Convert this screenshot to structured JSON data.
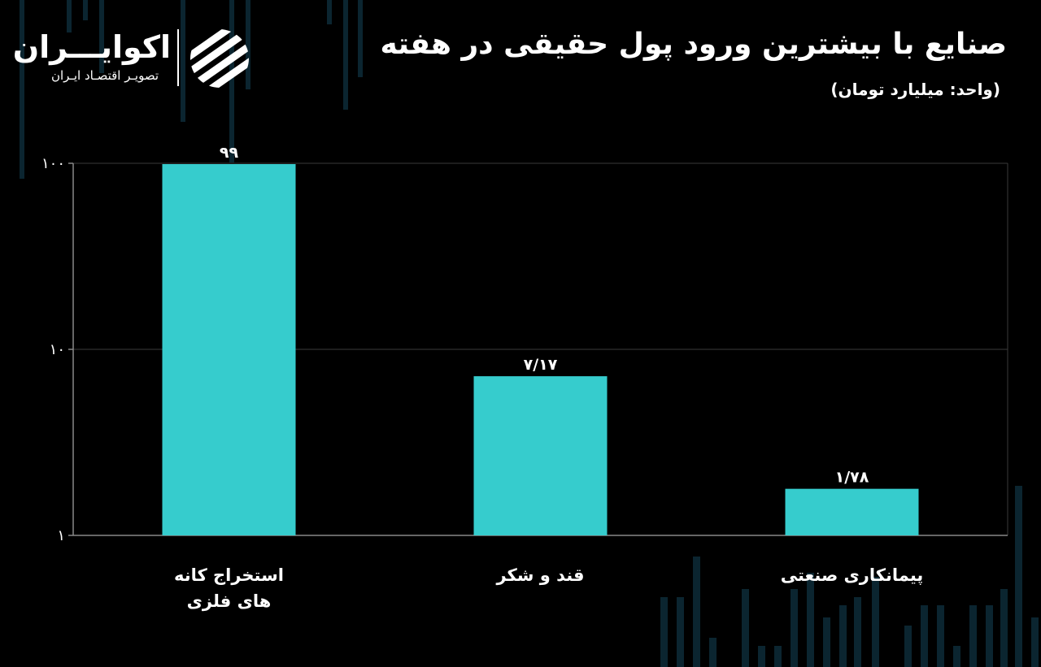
{
  "brand": {
    "name": "اکوایـــران",
    "tagline": "تصویـر اقتصـاد ایـران",
    "mark_icon": "ekoiran-logo-icon"
  },
  "colors": {
    "background": "#000000",
    "bar": "#36cccd",
    "text": "#ffffff",
    "grid": "#3a3a3a",
    "decor": "#0b2530"
  },
  "chart_data": {
    "type": "bar",
    "title": "صنایع با بیشترین ورود پول حقیقی در هفته",
    "subtitle": "(واحد: میلیارد تومان)",
    "categories": [
      "استخراج کانه های فلزی",
      "قند و شکر",
      "پیمانکاری صنعتی"
    ],
    "category_lines": [
      [
        "استخراج کانه",
        "های فلزی"
      ],
      [
        "قند و شکر"
      ],
      [
        "پیمانکاری صنعتی"
      ]
    ],
    "values": [
      99,
      7.17,
      1.78
    ],
    "value_labels": [
      "۹۹",
      "۷/۱۷",
      "۱/۷۸"
    ],
    "yscale": "log",
    "ylim": [
      1,
      100
    ],
    "yticks": [
      1,
      10,
      100
    ],
    "ytick_labels": [
      "۱",
      "۱۰",
      "۱۰۰"
    ],
    "grid": true,
    "legend": "none"
  }
}
